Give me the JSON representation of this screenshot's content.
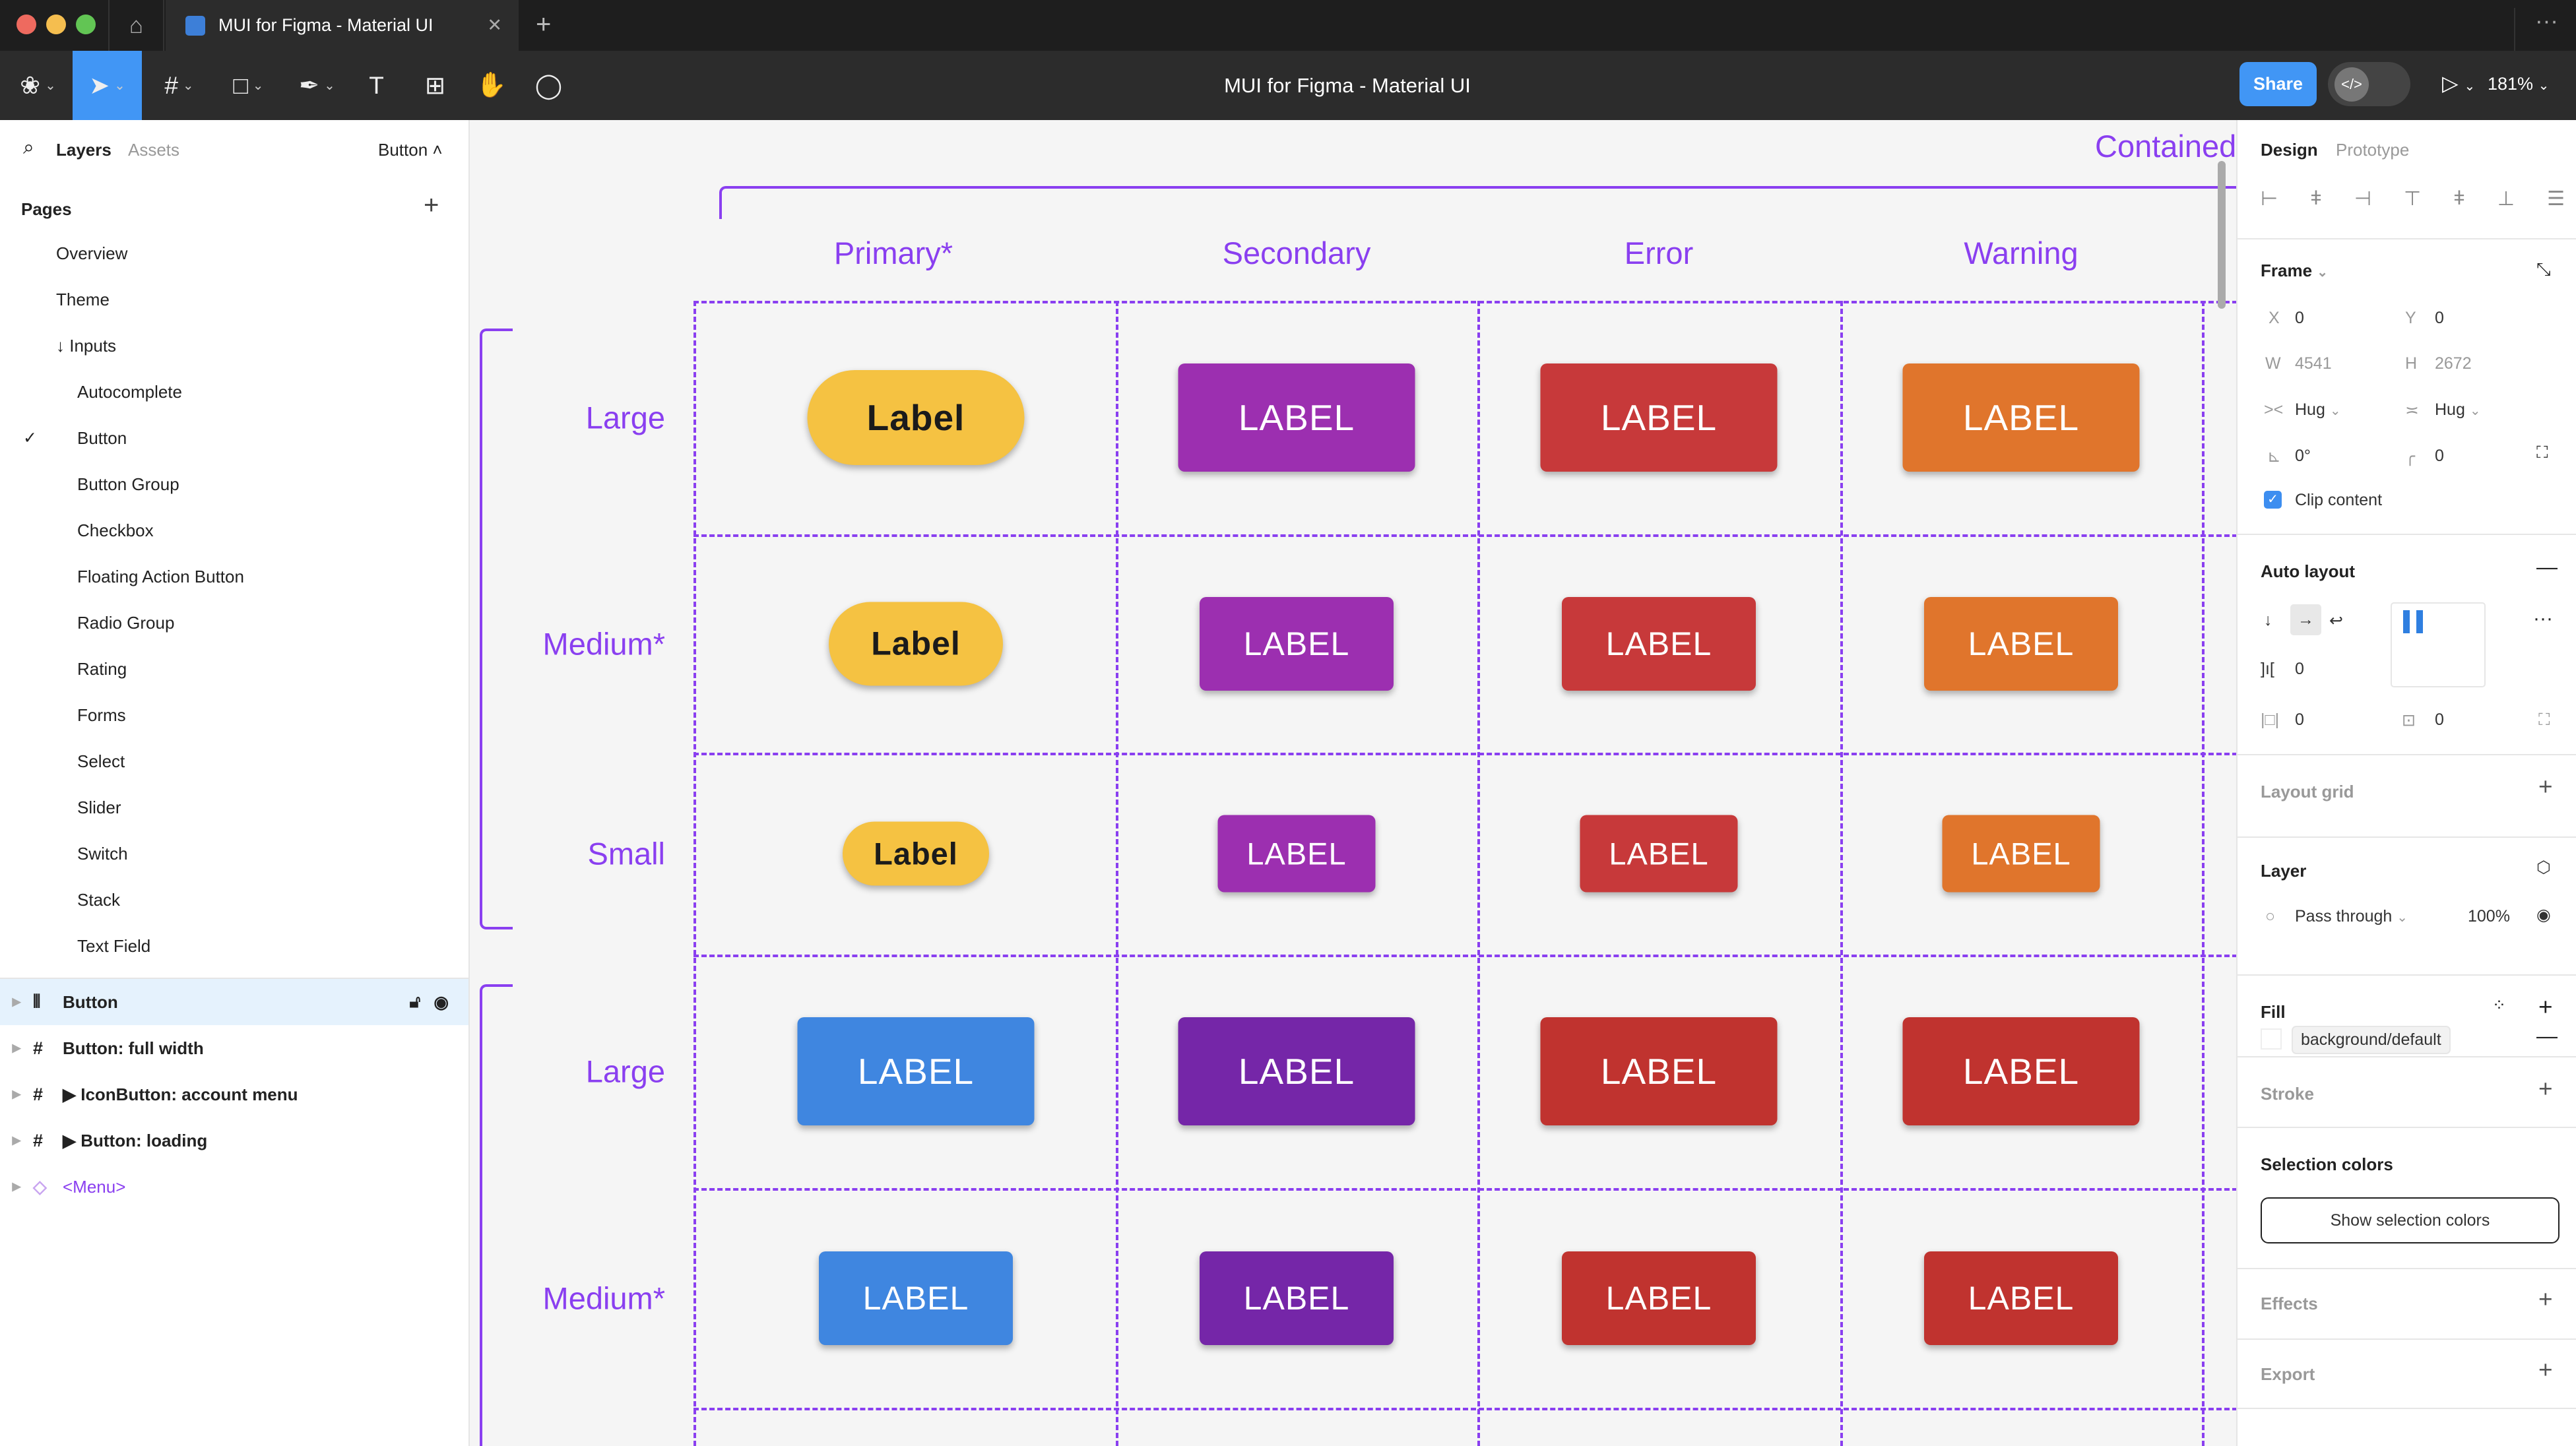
{
  "window": {
    "tab_title": "MUI for Figma - Material UI",
    "file_title": "MUI for Figma - Material UI",
    "share": "Share",
    "zoom": "181%",
    "code_icon": "</>"
  },
  "toolbar": {
    "tools": [
      "figma-menu",
      "move",
      "frame",
      "rectangle",
      "pen",
      "text",
      "resources",
      "hand",
      "comment"
    ]
  },
  "left": {
    "tabs": [
      "Layers",
      "Assets"
    ],
    "page_selector": "Button",
    "pages_title": "Pages",
    "pages": [
      {
        "label": "Overview",
        "indent": 0
      },
      {
        "label": "Theme",
        "indent": 0
      },
      {
        "label": "↓ Inputs",
        "indent": 0
      },
      {
        "label": "Autocomplete",
        "indent": 1
      },
      {
        "label": "Button",
        "indent": 1,
        "current": true
      },
      {
        "label": "Button Group",
        "indent": 1
      },
      {
        "label": "Checkbox",
        "indent": 1
      },
      {
        "label": "Floating Action Button",
        "indent": 1
      },
      {
        "label": "Radio Group",
        "indent": 1
      },
      {
        "label": "Rating",
        "indent": 1
      },
      {
        "label": "Forms",
        "indent": 1
      },
      {
        "label": "Select",
        "indent": 1
      },
      {
        "label": "Slider",
        "indent": 1
      },
      {
        "label": "Switch",
        "indent": 1
      },
      {
        "label": "Stack",
        "indent": 1
      },
      {
        "label": "Text Field",
        "indent": 1
      }
    ],
    "layers": [
      {
        "label": "Button",
        "icon": "auto-layout",
        "selected": true
      },
      {
        "label": "Button: full width",
        "icon": "#"
      },
      {
        "label": "▶ IconButton: account menu",
        "icon": "#"
      },
      {
        "label": "▶ Button: loading",
        "icon": "#"
      },
      {
        "label": "<Menu>",
        "icon": "◇",
        "component": true
      }
    ]
  },
  "canvas": {
    "section_title": "Contained",
    "columns": [
      "Primary*",
      "Secondary",
      "Error",
      "Warning"
    ],
    "accent": "#8a3ff0",
    "rows": [
      {
        "label": "Large",
        "size": "large",
        "buttons": [
          {
            "text": "Label",
            "color": "#f5c242",
            "fg": "#1b1b1b",
            "pill": true
          },
          {
            "text": "LABEL",
            "color": "#9c2fb0"
          },
          {
            "text": "LABEL",
            "color": "#c7393a"
          },
          {
            "text": "LABEL",
            "color": "#e0752c"
          }
        ]
      },
      {
        "label": "Medium*",
        "size": "medium",
        "buttons": [
          {
            "text": "Label",
            "color": "#f5c242",
            "fg": "#1b1b1b",
            "pill": true
          },
          {
            "text": "LABEL",
            "color": "#9c2fb0"
          },
          {
            "text": "LABEL",
            "color": "#c7393a"
          },
          {
            "text": "LABEL",
            "color": "#e0752c"
          }
        ]
      },
      {
        "label": "Small",
        "size": "small",
        "buttons": [
          {
            "text": "Label",
            "color": "#f5c242",
            "fg": "#1b1b1b",
            "pill": true
          },
          {
            "text": "LABEL",
            "color": "#9c2fb0"
          },
          {
            "text": "LABEL",
            "color": "#c7393a"
          },
          {
            "text": "LABEL",
            "color": "#e0752c"
          }
        ]
      },
      {
        "label": "Large",
        "size": "large",
        "buttons": [
          {
            "text": "LABEL",
            "color": "#3f86e0"
          },
          {
            "text": "LABEL",
            "color": "#7526a8"
          },
          {
            "text": "LABEL",
            "color": "#c0332f"
          },
          {
            "text": "LABEL",
            "color": "#c0332f"
          }
        ]
      },
      {
        "label": "Medium*",
        "size": "medium",
        "buttons": [
          {
            "text": "LABEL",
            "color": "#3f86e0"
          },
          {
            "text": "LABEL",
            "color": "#7526a8"
          },
          {
            "text": "LABEL",
            "color": "#c0332f"
          },
          {
            "text": "LABEL",
            "color": "#c0332f"
          }
        ]
      }
    ]
  },
  "right": {
    "tabs": [
      "Design",
      "Prototype"
    ],
    "frame": {
      "title": "Frame",
      "x_label": "X",
      "x": "0",
      "y_label": "Y",
      "y": "0",
      "w_label": "W",
      "w": "4541",
      "h_label": "H",
      "h": "2672",
      "hug_w": "Hug",
      "hug_h": "Hug",
      "rotation": "0°",
      "radius": "0",
      "clip": "Clip content",
      "clip_checked": true
    },
    "auto_layout": {
      "title": "Auto layout",
      "gap": "0",
      "pad_h": "0",
      "pad_v": "0"
    },
    "layout_grid": "Layout grid",
    "layer": {
      "title": "Layer",
      "blend": "Pass through",
      "opacity": "100%"
    },
    "fill": {
      "title": "Fill",
      "style": "background/default"
    },
    "stroke": "Stroke",
    "selection_colors": {
      "title": "Selection colors",
      "button": "Show selection colors"
    },
    "effects": "Effects",
    "export": "Export"
  }
}
